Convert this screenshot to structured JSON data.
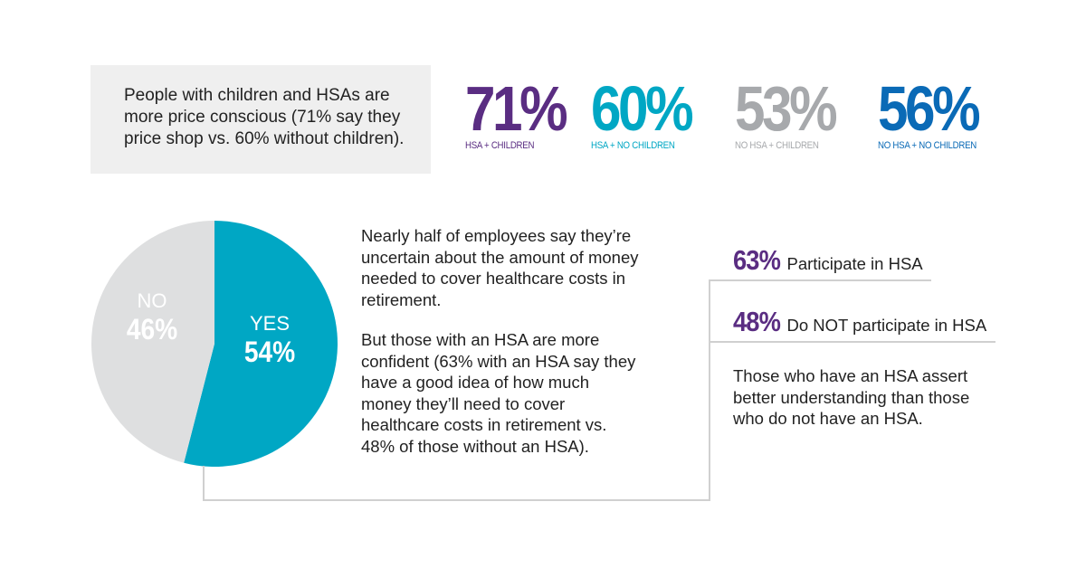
{
  "intro": {
    "text": "People with children and HSAs are more price conscious (71% say they price shop vs. 60% without children)."
  },
  "stats": [
    {
      "value": "71%",
      "label": "HSA + CHILDREN",
      "color": "#5a2d82"
    },
    {
      "value": "60%",
      "label": "HSA + NO CHILDREN",
      "color": "#00a7c4"
    },
    {
      "value": "53%",
      "label": "NO HSA + CHILDREN",
      "color": "#a7a9ac"
    },
    {
      "value": "56%",
      "label": "NO HSA + NO CHILDREN",
      "color": "#0a6ab6"
    }
  ],
  "chart_data": {
    "type": "pie",
    "categories": [
      "YES",
      "NO"
    ],
    "values": [
      54,
      46
    ],
    "value_labels": [
      "54%",
      "46%"
    ],
    "colors": [
      "#00a7c4",
      "#dedfe0"
    ]
  },
  "body": {
    "para1": "Nearly half of employees say they’re uncertain about the amount of money needed to cover healthcare costs in retirement.",
    "para2": "But those with an HSA are more confident (63% with an HSA say they have a good idea of how much money they’ll need to cover healthcare costs in retirement vs. 48% of those without an HSA)."
  },
  "comparison": [
    {
      "value": "63%",
      "label": "Participate in HSA"
    },
    {
      "value": "48%",
      "label": "Do NOT participate in HSA"
    }
  ],
  "conclusion": "Those who have an HSA assert better understanding than those who do not have an HSA."
}
